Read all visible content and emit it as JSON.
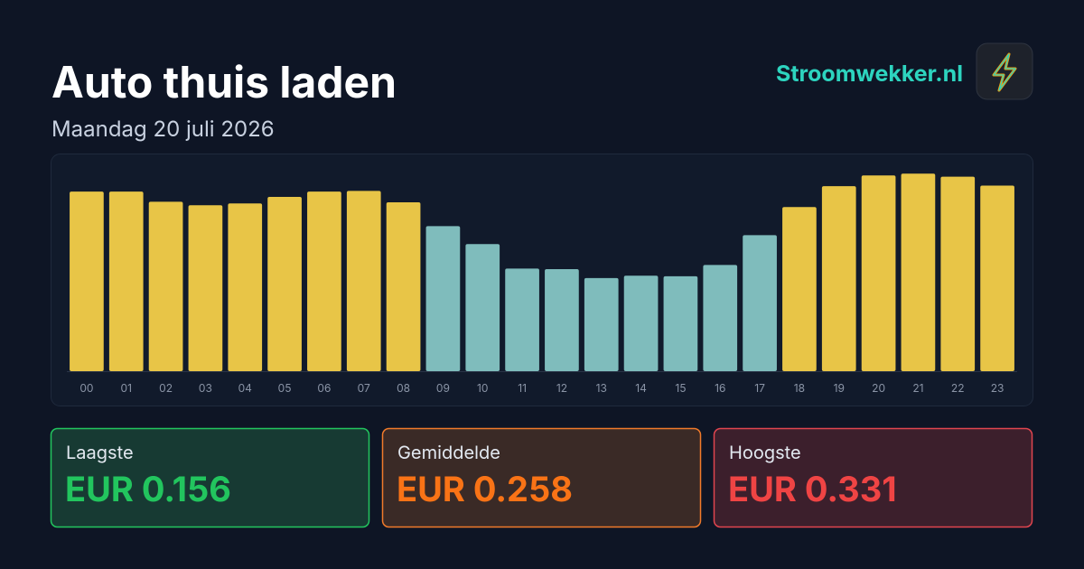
{
  "header": {
    "title": "Auto thuis laden",
    "subtitle": "Maandag 20 juli 2026",
    "brand": "Stroomwekker.nl"
  },
  "chart_data": {
    "type": "bar",
    "categories": [
      "00",
      "01",
      "02",
      "03",
      "04",
      "05",
      "06",
      "07",
      "08",
      "09",
      "10",
      "11",
      "12",
      "13",
      "14",
      "15",
      "16",
      "17",
      "18",
      "19",
      "20",
      "21",
      "22",
      "23"
    ],
    "values": [
      0.301,
      0.301,
      0.284,
      0.278,
      0.281,
      0.292,
      0.301,
      0.302,
      0.283,
      0.243,
      0.213,
      0.172,
      0.171,
      0.156,
      0.16,
      0.159,
      0.178,
      0.228,
      0.275,
      0.31,
      0.328,
      0.331,
      0.326,
      0.311
    ],
    "colors": [
      "#e8c547",
      "#e8c547",
      "#e8c547",
      "#e8c547",
      "#e8c547",
      "#e8c547",
      "#e8c547",
      "#e8c547",
      "#e8c547",
      "#7fbcbc",
      "#7fbcbc",
      "#7fbcbc",
      "#7fbcbc",
      "#7fbcbc",
      "#7fbcbc",
      "#7fbcbc",
      "#7fbcbc",
      "#7fbcbc",
      "#e8c547",
      "#e8c547",
      "#e8c547",
      "#e8c547",
      "#e8c547",
      "#e8c547"
    ],
    "ylim": [
      0,
      0.342
    ]
  },
  "stats": [
    {
      "label": "Laagste",
      "value": "EUR 0.156"
    },
    {
      "label": "Gemiddelde",
      "value": "EUR 0.258"
    },
    {
      "label": "Hoogste",
      "value": "EUR 0.331"
    }
  ]
}
